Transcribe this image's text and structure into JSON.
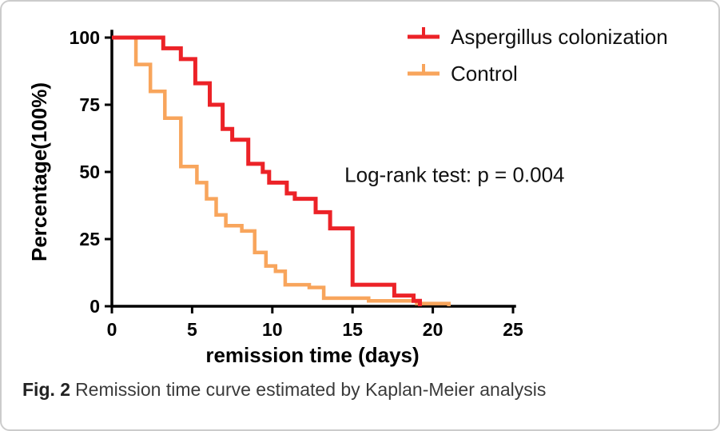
{
  "figure": {
    "caption": {
      "label": "Fig. 2",
      "text": "Remission time curve estimated by Kaplan-Meier analysis"
    }
  },
  "chart_data": {
    "type": "line",
    "subtype": "kaplan_meier_step",
    "title": "",
    "xlabel": "remission time (days)",
    "ylabel": "Percentage(100%)",
    "xlim": [
      0,
      25
    ],
    "ylim": [
      0,
      100
    ],
    "xticks": [
      0,
      5,
      10,
      15,
      20,
      25
    ],
    "yticks": [
      0,
      25,
      50,
      75,
      100
    ],
    "grid": false,
    "legend_position": "top-right",
    "axis_color": "#000000",
    "annotation": {
      "text": "Log-rank test: p = 0.004",
      "x": 14.5,
      "y": 49
    },
    "series": [
      {
        "name": "Aspergillus colonization",
        "color": "#EC2227",
        "steps": [
          [
            0,
            100
          ],
          [
            3.2,
            96
          ],
          [
            4.3,
            92
          ],
          [
            5.2,
            83
          ],
          [
            6.1,
            75
          ],
          [
            6.9,
            66
          ],
          [
            7.5,
            62
          ],
          [
            8.5,
            53
          ],
          [
            9.4,
            50
          ],
          [
            9.8,
            46
          ],
          [
            10.9,
            42
          ],
          [
            11.4,
            40
          ],
          [
            12.7,
            35
          ],
          [
            13.6,
            29
          ],
          [
            15,
            8
          ],
          [
            17.6,
            4
          ],
          [
            18.8,
            2
          ],
          [
            19.2,
            0
          ]
        ]
      },
      {
        "name": "Control",
        "color": "#F8A55C",
        "steps": [
          [
            0,
            100
          ],
          [
            1.5,
            90
          ],
          [
            2.4,
            80
          ],
          [
            3.3,
            70
          ],
          [
            4.3,
            52
          ],
          [
            5.3,
            46
          ],
          [
            5.9,
            40
          ],
          [
            6.5,
            34
          ],
          [
            7.1,
            30
          ],
          [
            8.1,
            28
          ],
          [
            8.9,
            20
          ],
          [
            9.6,
            15
          ],
          [
            10.2,
            13
          ],
          [
            10.8,
            8
          ],
          [
            12.3,
            7
          ],
          [
            13.2,
            3
          ],
          [
            16,
            2
          ],
          [
            19,
            1
          ],
          [
            21,
            0
          ]
        ]
      }
    ]
  }
}
